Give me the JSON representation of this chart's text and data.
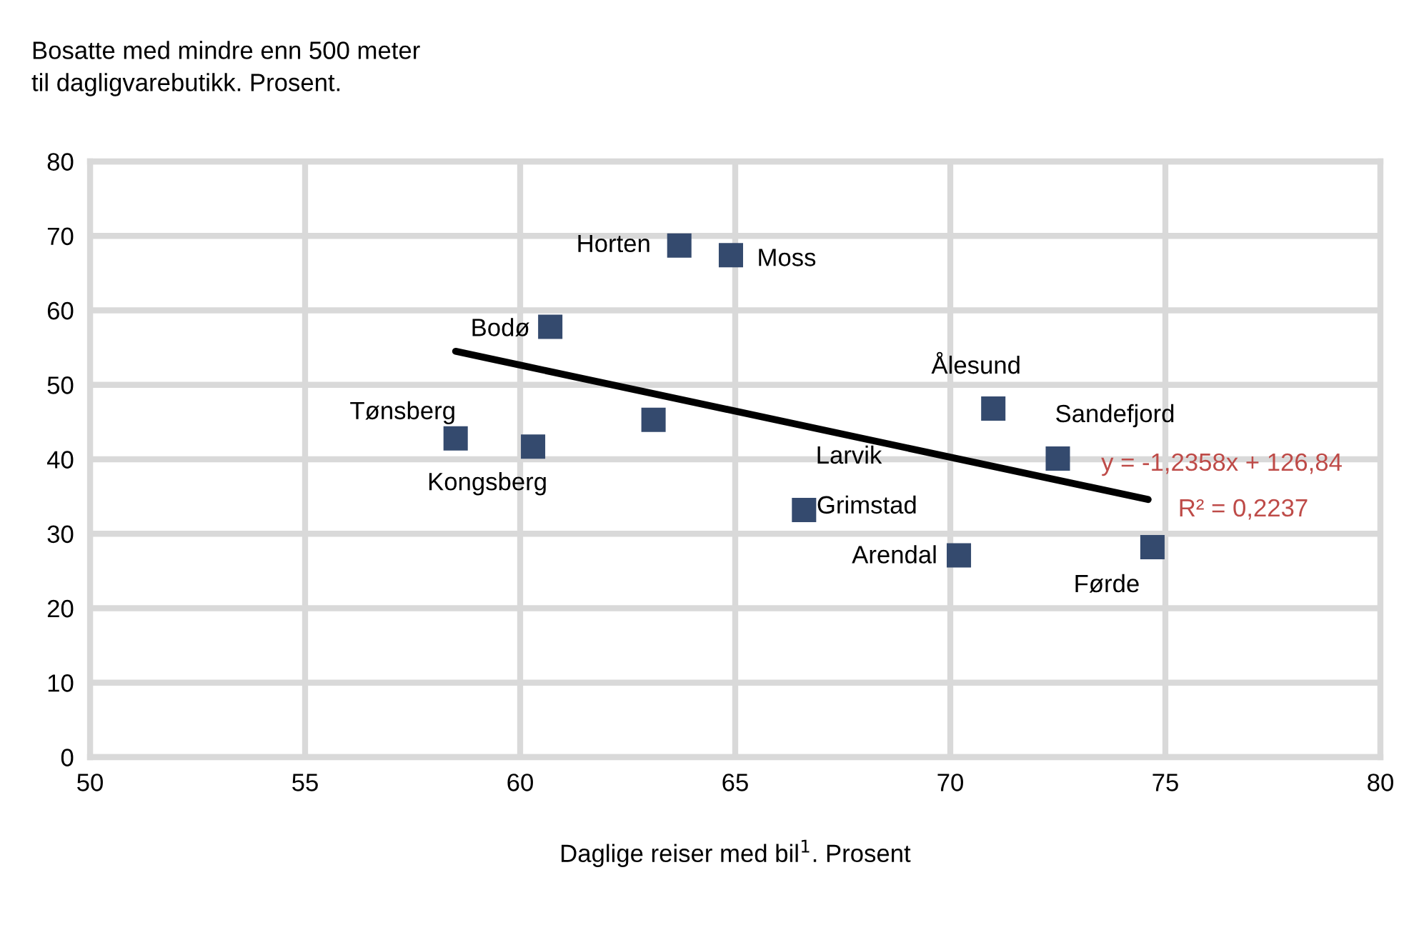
{
  "chart_data": {
    "type": "scatter",
    "xlabel": "Daglige reiser med bil$^{1}$. Prosent",
    "ylabel": "Bosatte med mindre enn 500 meter\ntil dagligvarebutikk. Prosent.",
    "xlim": [
      50,
      80
    ],
    "xticks": [
      50,
      55,
      60,
      65,
      70,
      75,
      80
    ],
    "ylim": [
      0,
      80
    ],
    "yticks": [
      0,
      10,
      20,
      30,
      40,
      50,
      60,
      70,
      80
    ],
    "grid": true,
    "series": [
      {
        "color": "#344a6e",
        "marker": "square",
        "x": [
          63.7,
          64.9,
          60.7,
          58.5,
          60.3,
          63.1,
          71.0,
          72.5,
          66.6,
          70.2,
          74.7
        ],
        "values": [
          68.7,
          67.4,
          57.8,
          42.8,
          41.7,
          45.3,
          46.8,
          40.1,
          33.2,
          27.1,
          28.2
        ]
      },
      {
        "type": "line",
        "color": "#000000",
        "x": [
          58.5,
          74.6
        ],
        "values": [
          54.5,
          34.6
        ]
      }
    ],
    "annotations": [
      {
        "text": "Horten",
        "x": 63.7,
        "y": 68.7
      },
      {
        "text": "Moss",
        "x": 64.9,
        "y": 67.4
      },
      {
        "text": "Bodø",
        "x": 60.7,
        "y": 57.8
      },
      {
        "text": "Tønsberg",
        "x": 58.5,
        "y": 42.8
      },
      {
        "text": "Kongsberg",
        "x": 60.3,
        "y": 41.7
      },
      "Larvik",
      {
        "text": "Ålesund",
        "x": 71.0,
        "y": 46.8
      },
      {
        "text": "Sandefjord",
        "x": 72.5,
        "y": 40.1
      },
      {
        "text": "Grimstad",
        "x": 66.6,
        "y": 33.2
      },
      {
        "text": "Arendal",
        "x": 70.2,
        "y": 27.1
      },
      {
        "text": "Førde",
        "x": 74.7,
        "y": 28.2
      },
      "y = -1,2358x + 126,84",
      "R² = 0,2237"
    ]
  }
}
